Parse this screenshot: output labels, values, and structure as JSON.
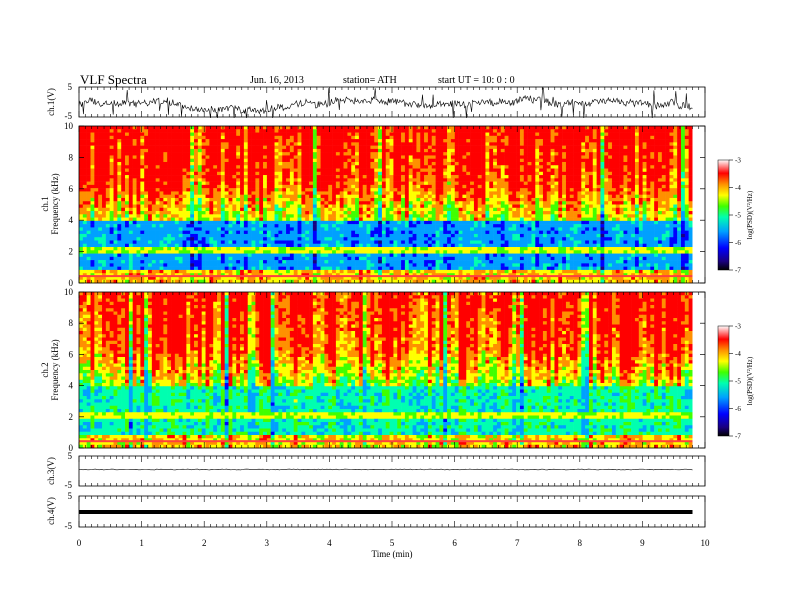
{
  "header": {
    "title": "VLF  Spectra",
    "date": "Jun. 16, 2013",
    "station": "station= ATH",
    "start": "start  UT  =   10: 0  : 0"
  },
  "chart_data": [
    {
      "type": "line",
      "panel": "ch1-waveform",
      "ylabel": "ch.1(V)",
      "ylim": [
        -5,
        5
      ],
      "yticks": [
        "5",
        "-5"
      ],
      "x_range_min": [
        0,
        9.8
      ],
      "description_of_series": "noisy waveform oscillating near 0 V with spikes",
      "series": [
        {
          "values_sample": [
            1.0,
            0.4,
            -0.6,
            0.8,
            -1.2,
            0.3,
            1.4,
            -0.5,
            0.2,
            -1.8,
            0.9,
            0.1
          ]
        }
      ]
    },
    {
      "type": "heatmap",
      "panel": "ch1-spectrogram",
      "ylabel_1": "ch.1",
      "ylabel_2": "Frequency  (kHz)",
      "ylim": [
        0,
        10
      ],
      "yticks": [
        "0",
        "2",
        "4",
        "6",
        "8",
        "10"
      ],
      "xlim": [
        0,
        10
      ],
      "colorbar": {
        "label": "log(PSD)(V²/Hz)",
        "ticks": [
          "-3",
          "-4",
          "-5",
          "-6",
          "-7"
        ],
        "range": [
          -7,
          -3
        ]
      }
    },
    {
      "type": "heatmap",
      "panel": "ch2-spectrogram",
      "ylabel_1": "ch.2",
      "ylabel_2": "Frequency  (kHz)",
      "ylim": [
        0,
        10
      ],
      "yticks": [
        "0",
        "2",
        "4",
        "6",
        "8",
        "10"
      ],
      "xlim": [
        0,
        10
      ],
      "colorbar": {
        "label": "log(PSD)(V²/Hz)",
        "ticks": [
          "-3",
          "-4",
          "-5",
          "-6",
          "-7"
        ],
        "range": [
          -7,
          -3
        ]
      }
    },
    {
      "type": "line",
      "panel": "ch3-waveform",
      "ylabel": "ch.3(V)",
      "ylim": [
        -5,
        5
      ],
      "yticks": [
        "5",
        "-5"
      ],
      "series": [
        {
          "values_sample": [
            0,
            0,
            0,
            0,
            0,
            0
          ]
        }
      ]
    },
    {
      "type": "line",
      "panel": "ch4-waveform",
      "ylabel": "ch.4(V)",
      "ylim": [
        -5,
        5
      ],
      "yticks": [
        "5",
        "-5"
      ],
      "series": [
        {
          "values_sample": [
            0,
            0,
            0,
            0,
            0,
            0
          ]
        }
      ]
    }
  ],
  "xaxis": {
    "label": "Time  (min)",
    "ticks": [
      "0",
      "1",
      "2",
      "3",
      "4",
      "5",
      "6",
      "7",
      "8",
      "9",
      "10"
    ],
    "xlim": [
      0,
      10
    ],
    "data_end_min": 9.8
  },
  "colors": {
    "colormap": [
      "#000000",
      "#1a0080",
      "#0000ff",
      "#00a0ff",
      "#00ffb0",
      "#40ff00",
      "#ffff00",
      "#ff9000",
      "#ff0000",
      "#ffffff"
    ]
  }
}
